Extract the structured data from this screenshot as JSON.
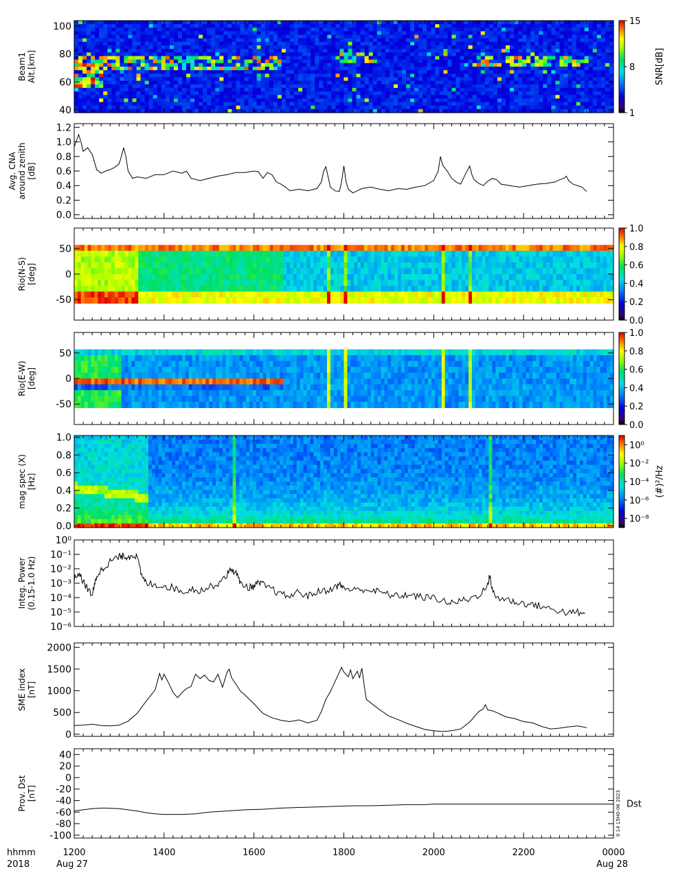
{
  "chart_data": [
    {
      "id": "beam1",
      "type": "heatmap",
      "ylabel": [
        "Beam1",
        "Alt.[km]"
      ],
      "yticks": [
        40,
        60,
        80,
        100
      ],
      "ylim": [
        38,
        104
      ],
      "colorbar": {
        "label": "SNR[dB]",
        "ticks": [
          1,
          8,
          15
        ],
        "range": [
          1,
          15
        ]
      }
    },
    {
      "id": "cna",
      "type": "line",
      "ylabel": [
        "Avg. CNA",
        "around zenith",
        "[dB]"
      ],
      "yticks": [
        "0.0",
        "0.2",
        "0.4",
        "0.6",
        "0.8",
        "1.0",
        "1.2"
      ],
      "ylim": [
        -0.05,
        1.25
      ],
      "points": [
        [
          1200,
          0.93
        ],
        [
          1205,
          1.02
        ],
        [
          1210,
          1.1
        ],
        [
          1215,
          1.0
        ],
        [
          1220,
          0.87
        ],
        [
          1230,
          0.92
        ],
        [
          1240,
          0.83
        ],
        [
          1250,
          0.62
        ],
        [
          1260,
          0.57
        ],
        [
          1270,
          0.6
        ],
        [
          1280,
          0.62
        ],
        [
          1290,
          0.65
        ],
        [
          1300,
          0.7
        ],
        [
          1305,
          0.8
        ],
        [
          1310,
          0.92
        ],
        [
          1315,
          0.8
        ],
        [
          1320,
          0.6
        ],
        [
          1330,
          0.5
        ],
        [
          1340,
          0.52
        ],
        [
          1360,
          0.5
        ],
        [
          1380,
          0.55
        ],
        [
          1400,
          0.55
        ],
        [
          1420,
          0.6
        ],
        [
          1440,
          0.57
        ],
        [
          1450,
          0.6
        ],
        [
          1460,
          0.5
        ],
        [
          1480,
          0.47
        ],
        [
          1500,
          0.5
        ],
        [
          1520,
          0.53
        ],
        [
          1540,
          0.55
        ],
        [
          1560,
          0.58
        ],
        [
          1580,
          0.58
        ],
        [
          1600,
          0.6
        ],
        [
          1610,
          0.59
        ],
        [
          1620,
          0.5
        ],
        [
          1630,
          0.58
        ],
        [
          1640,
          0.55
        ],
        [
          1650,
          0.45
        ],
        [
          1660,
          0.42
        ],
        [
          1670,
          0.38
        ],
        [
          1680,
          0.33
        ],
        [
          1700,
          0.35
        ],
        [
          1720,
          0.33
        ],
        [
          1740,
          0.36
        ],
        [
          1750,
          0.45
        ],
        [
          1755,
          0.6
        ],
        [
          1760,
          0.66
        ],
        [
          1765,
          0.52
        ],
        [
          1770,
          0.38
        ],
        [
          1780,
          0.33
        ],
        [
          1790,
          0.32
        ],
        [
          1795,
          0.45
        ],
        [
          1800,
          0.67
        ],
        [
          1805,
          0.45
        ],
        [
          1810,
          0.35
        ],
        [
          1820,
          0.3
        ],
        [
          1830,
          0.33
        ],
        [
          1840,
          0.36
        ],
        [
          1860,
          0.38
        ],
        [
          1880,
          0.35
        ],
        [
          1900,
          0.33
        ],
        [
          1920,
          0.36
        ],
        [
          1940,
          0.35
        ],
        [
          1960,
          0.38
        ],
        [
          1980,
          0.4
        ],
        [
          2000,
          0.47
        ],
        [
          2010,
          0.6
        ],
        [
          2015,
          0.8
        ],
        [
          2020,
          0.68
        ],
        [
          2030,
          0.6
        ],
        [
          2040,
          0.5
        ],
        [
          2050,
          0.45
        ],
        [
          2060,
          0.42
        ],
        [
          2070,
          0.55
        ],
        [
          2080,
          0.67
        ],
        [
          2085,
          0.55
        ],
        [
          2090,
          0.48
        ],
        [
          2100,
          0.43
        ],
        [
          2110,
          0.4
        ],
        [
          2120,
          0.46
        ],
        [
          2130,
          0.5
        ],
        [
          2140,
          0.48
        ],
        [
          2150,
          0.42
        ],
        [
          2170,
          0.4
        ],
        [
          2190,
          0.38
        ],
        [
          2210,
          0.4
        ],
        [
          2230,
          0.42
        ],
        [
          2250,
          0.43
        ],
        [
          2270,
          0.45
        ],
        [
          2280,
          0.48
        ],
        [
          2290,
          0.5
        ],
        [
          2295,
          0.53
        ],
        [
          2300,
          0.47
        ],
        [
          2310,
          0.42
        ],
        [
          2330,
          0.38
        ],
        [
          2340,
          0.32
        ]
      ]
    },
    {
      "id": "rio_ns",
      "type": "heatmap",
      "ylabel": [
        "Rio(N-S)",
        "[deg]"
      ],
      "yticks": [
        -50,
        0,
        50
      ],
      "ylim": [
        -90,
        90
      ],
      "colorbar": {
        "label": "",
        "ticks": [
          "0.0",
          "0.2",
          "0.4",
          "0.6",
          "0.8",
          "1.0"
        ],
        "range": [
          0,
          1
        ]
      }
    },
    {
      "id": "rio_ew",
      "type": "heatmap",
      "ylabel": [
        "Rio(E-W)",
        "[deg]"
      ],
      "yticks": [
        -50,
        0,
        50
      ],
      "ylim": [
        -90,
        90
      ],
      "colorbar": {
        "label": "",
        "ticks": [
          "0.0",
          "0.2",
          "0.4",
          "0.6",
          "0.8",
          "1.0"
        ],
        "range": [
          0,
          1
        ]
      }
    },
    {
      "id": "mag_spec",
      "type": "heatmap",
      "ylabel": [
        "mag spec (X)",
        "[Hz]"
      ],
      "yticks": [
        "0.0",
        "0.2",
        "0.4",
        "0.6",
        "0.8",
        "1.0"
      ],
      "ylim": [
        -0.02,
        1.02
      ],
      "colorbar": {
        "label": "(#)²/Hz",
        "ticks": [
          "10⁰",
          "10⁻²",
          "10⁻⁴",
          "10⁻⁶",
          "10⁻⁸"
        ],
        "range": [
          -9,
          1
        ]
      }
    },
    {
      "id": "integ_power",
      "type": "line",
      "log_y": true,
      "ylabel": [
        "Integ. Power",
        "(0.15-1.0 Hz)"
      ],
      "yticks": [
        "10⁻⁶",
        "10⁻⁵",
        "10⁻⁴",
        "10⁻³",
        "10⁻²",
        "10⁻¹",
        "10⁰"
      ],
      "ylim": [
        -6,
        0
      ],
      "points_log10": [
        [
          1200,
          -2.7
        ],
        [
          1210,
          -2.3
        ],
        [
          1220,
          -2.9
        ],
        [
          1230,
          -3.4
        ],
        [
          1240,
          -3.8
        ],
        [
          1245,
          -3.2
        ],
        [
          1250,
          -2.5
        ],
        [
          1260,
          -2.1
        ],
        [
          1270,
          -1.8
        ],
        [
          1280,
          -1.5
        ],
        [
          1290,
          -1.3
        ],
        [
          1300,
          -1.2
        ],
        [
          1310,
          -1.1
        ],
        [
          1320,
          -1.2
        ],
        [
          1330,
          -1.0
        ],
        [
          1340,
          -1.2
        ],
        [
          1350,
          -2.5
        ],
        [
          1360,
          -3.0
        ],
        [
          1380,
          -3.1
        ],
        [
          1400,
          -3.2
        ],
        [
          1420,
          -3.3
        ],
        [
          1440,
          -3.6
        ],
        [
          1460,
          -3.4
        ],
        [
          1480,
          -3.5
        ],
        [
          1500,
          -3.3
        ],
        [
          1520,
          -3.0
        ],
        [
          1540,
          -2.4
        ],
        [
          1550,
          -2.0
        ],
        [
          1560,
          -2.3
        ],
        [
          1570,
          -3.0
        ],
        [
          1590,
          -3.3
        ],
        [
          1600,
          -3.2
        ],
        [
          1610,
          -3.0
        ],
        [
          1620,
          -3.1
        ],
        [
          1640,
          -3.4
        ],
        [
          1660,
          -3.8
        ],
        [
          1680,
          -3.9
        ],
        [
          1700,
          -3.6
        ],
        [
          1720,
          -3.9
        ],
        [
          1740,
          -3.6
        ],
        [
          1760,
          -3.5
        ],
        [
          1780,
          -3.3
        ],
        [
          1790,
          -3.1
        ],
        [
          1800,
          -3.3
        ],
        [
          1820,
          -3.5
        ],
        [
          1840,
          -3.4
        ],
        [
          1860,
          -3.5
        ],
        [
          1880,
          -3.6
        ],
        [
          1900,
          -3.8
        ],
        [
          1920,
          -3.9
        ],
        [
          1940,
          -3.8
        ],
        [
          1960,
          -3.9
        ],
        [
          1980,
          -4.0
        ],
        [
          2000,
          -4.0
        ],
        [
          2020,
          -4.2
        ],
        [
          2040,
          -4.4
        ],
        [
          2060,
          -4.2
        ],
        [
          2080,
          -4.1
        ],
        [
          2100,
          -3.8
        ],
        [
          2120,
          -3.2
        ],
        [
          2125,
          -2.4
        ],
        [
          2130,
          -3.5
        ],
        [
          2140,
          -4.0
        ],
        [
          2160,
          -4.1
        ],
        [
          2180,
          -4.3
        ],
        [
          2200,
          -4.4
        ],
        [
          2220,
          -4.5
        ],
        [
          2240,
          -4.6
        ],
        [
          2260,
          -4.8
        ],
        [
          2280,
          -4.9
        ],
        [
          2300,
          -5.1
        ],
        [
          2320,
          -5.0
        ],
        [
          2340,
          -5.3
        ]
      ]
    },
    {
      "id": "sme",
      "type": "line",
      "ylabel": [
        "SME index",
        "[nT]"
      ],
      "yticks": [
        0,
        500,
        1000,
        1500,
        2000
      ],
      "ylim": [
        -50,
        2100
      ],
      "points": [
        [
          1200,
          200
        ],
        [
          1220,
          210
        ],
        [
          1240,
          230
        ],
        [
          1260,
          200
        ],
        [
          1280,
          190
        ],
        [
          1300,
          210
        ],
        [
          1320,
          300
        ],
        [
          1340,
          480
        ],
        [
          1360,
          760
        ],
        [
          1380,
          1020
        ],
        [
          1390,
          1400
        ],
        [
          1395,
          1250
        ],
        [
          1400,
          1380
        ],
        [
          1410,
          1180
        ],
        [
          1420,
          960
        ],
        [
          1430,
          840
        ],
        [
          1440,
          960
        ],
        [
          1450,
          1050
        ],
        [
          1460,
          1100
        ],
        [
          1470,
          1380
        ],
        [
          1480,
          1280
        ],
        [
          1490,
          1360
        ],
        [
          1500,
          1240
        ],
        [
          1510,
          1200
        ],
        [
          1520,
          1380
        ],
        [
          1530,
          1080
        ],
        [
          1540,
          1420
        ],
        [
          1545,
          1500
        ],
        [
          1550,
          1300
        ],
        [
          1560,
          1150
        ],
        [
          1570,
          990
        ],
        [
          1580,
          900
        ],
        [
          1600,
          700
        ],
        [
          1620,
          480
        ],
        [
          1640,
          380
        ],
        [
          1660,
          320
        ],
        [
          1680,
          290
        ],
        [
          1700,
          330
        ],
        [
          1720,
          260
        ],
        [
          1740,
          320
        ],
        [
          1750,
          520
        ],
        [
          1760,
          800
        ],
        [
          1770,
          980
        ],
        [
          1780,
          1200
        ],
        [
          1790,
          1430
        ],
        [
          1795,
          1540
        ],
        [
          1800,
          1430
        ],
        [
          1810,
          1320
        ],
        [
          1815,
          1480
        ],
        [
          1820,
          1280
        ],
        [
          1830,
          1450
        ],
        [
          1835,
          1300
        ],
        [
          1840,
          1520
        ],
        [
          1845,
          1150
        ],
        [
          1850,
          800
        ],
        [
          1860,
          720
        ],
        [
          1880,
          560
        ],
        [
          1900,
          420
        ],
        [
          1920,
          340
        ],
        [
          1940,
          250
        ],
        [
          1960,
          180
        ],
        [
          1980,
          110
        ],
        [
          2000,
          80
        ],
        [
          2020,
          60
        ],
        [
          2040,
          80
        ],
        [
          2060,
          120
        ],
        [
          2080,
          280
        ],
        [
          2100,
          520
        ],
        [
          2110,
          580
        ],
        [
          2115,
          680
        ],
        [
          2120,
          560
        ],
        [
          2130,
          540
        ],
        [
          2140,
          500
        ],
        [
          2160,
          400
        ],
        [
          2180,
          360
        ],
        [
          2200,
          290
        ],
        [
          2220,
          260
        ],
        [
          2240,
          180
        ],
        [
          2260,
          120
        ],
        [
          2280,
          140
        ],
        [
          2300,
          170
        ],
        [
          2320,
          190
        ],
        [
          2340,
          150
        ]
      ]
    },
    {
      "id": "dst",
      "type": "line",
      "ylabel": [
        "Prov. Dst",
        "[nT]"
      ],
      "yticks": [
        -100,
        -80,
        -60,
        -40,
        -20,
        0,
        20,
        40
      ],
      "ylim": [
        -105,
        50
      ],
      "series_label": "Dst",
      "stamp": "0 14 15H0-06 2023",
      "points": [
        [
          1200,
          -58
        ],
        [
          1220,
          -56
        ],
        [
          1240,
          -54
        ],
        [
          1260,
          -53
        ],
        [
          1270,
          -53
        ],
        [
          1300,
          -54
        ],
        [
          1320,
          -56
        ],
        [
          1340,
          -58
        ],
        [
          1360,
          -61
        ],
        [
          1380,
          -63
        ],
        [
          1400,
          -64
        ],
        [
          1440,
          -64
        ],
        [
          1470,
          -63
        ],
        [
          1500,
          -60
        ],
        [
          1540,
          -58
        ],
        [
          1580,
          -56
        ],
        [
          1620,
          -55
        ],
        [
          1660,
          -53
        ],
        [
          1700,
          -52
        ],
        [
          1740,
          -51
        ],
        [
          1780,
          -50
        ],
        [
          1820,
          -49
        ],
        [
          1860,
          -49
        ],
        [
          1900,
          -48
        ],
        [
          1940,
          -47
        ],
        [
          1980,
          -47
        ],
        [
          2000,
          -46
        ]
      ]
    }
  ],
  "time_axis": {
    "label_row1": "hhmm",
    "label_row2": "2018",
    "ticks": [
      "1200",
      "1400",
      "1600",
      "1800",
      "2000",
      "2200",
      "0000"
    ],
    "date_start": "Aug 27",
    "date_end": "Aug 28"
  }
}
